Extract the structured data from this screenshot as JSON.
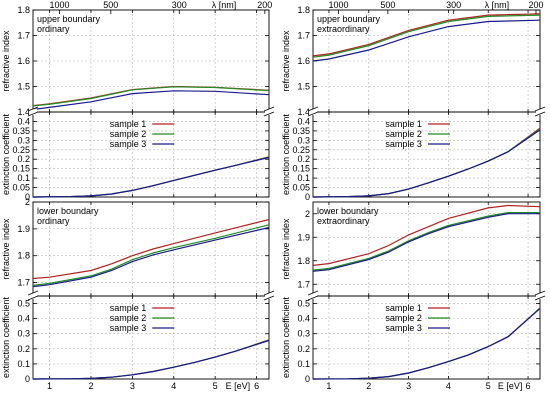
{
  "chart_data": [
    {
      "panel": "top-left",
      "type": "line",
      "annotation": [
        "upper boundary",
        "ordinary"
      ],
      "top_axis": {
        "label": "λ [nm]",
        "ticks": [
          {
            "lambda_nm": 1000,
            "label": "1000"
          },
          {
            "lambda_nm": 500,
            "label": "500"
          },
          {
            "lambda_nm": 300,
            "label": "300"
          },
          {
            "lambda_nm": 200,
            "label": "200"
          }
        ]
      },
      "xlim": [
        0.6,
        6.3
      ],
      "upper": {
        "ylabel": "refractive index",
        "ylim": [
          1.4,
          1.8
        ],
        "yticks": [
          1.4,
          1.5,
          1.6,
          1.7,
          1.8
        ],
        "series": [
          {
            "color": "#b22222",
            "x": [
              0.6,
              1,
              2,
              3,
              4,
              5,
              6.3
            ],
            "y": [
              1.425,
              1.432,
              1.455,
              1.488,
              1.5,
              1.497,
              1.485
            ]
          },
          {
            "color": "#228b22",
            "x": [
              0.6,
              1,
              2,
              3,
              4,
              5,
              6.3
            ],
            "y": [
              1.424,
              1.43,
              1.453,
              1.487,
              1.499,
              1.496,
              1.484
            ]
          },
          {
            "color": "#1a1a8c",
            "x": [
              0.6,
              1,
              2,
              3,
              4,
              5,
              6.3
            ],
            "y": [
              1.41,
              1.418,
              1.44,
              1.472,
              1.483,
              1.481,
              1.468
            ]
          }
        ]
      },
      "lower": {
        "ylabel": "extinction coefficient",
        "ylim": [
          0,
          0.45
        ],
        "yticks": [
          0,
          0.05,
          0.1,
          0.15,
          0.2,
          0.25,
          0.3,
          0.35,
          0.4
        ],
        "legend_position": "top-center",
        "series": [
          {
            "name": "sample 1",
            "color": "#b22222",
            "x": [
              0.6,
              1.5,
              2,
              2.5,
              3,
              3.5,
              4,
              4.5,
              5,
              5.5,
              6.3
            ],
            "y": [
              0,
              0.002,
              0.006,
              0.016,
              0.035,
              0.06,
              0.088,
              0.115,
              0.142,
              0.168,
              0.213
            ]
          },
          {
            "name": "sample 2",
            "color": "#228b22",
            "x": [
              0.6,
              1.5,
              2,
              2.5,
              3,
              3.5,
              4,
              4.5,
              5,
              5.5,
              6.3
            ],
            "y": [
              0,
              0.002,
              0.006,
              0.016,
              0.035,
              0.06,
              0.088,
              0.115,
              0.142,
              0.168,
              0.211
            ]
          },
          {
            "name": "sample 3",
            "color": "#1a1a8c",
            "x": [
              0.6,
              1.5,
              2,
              2.5,
              3,
              3.5,
              4,
              4.5,
              5,
              5.5,
              6.3
            ],
            "y": [
              0,
              0.002,
              0.006,
              0.016,
              0.035,
              0.06,
              0.088,
              0.115,
              0.142,
              0.168,
              0.209
            ]
          }
        ]
      }
    },
    {
      "panel": "top-right",
      "type": "line",
      "annotation": [
        "upper boundary",
        "extraordinary"
      ],
      "top_axis": {
        "label": "λ [nm]",
        "ticks": [
          {
            "lambda_nm": 1000,
            "label": "1000"
          },
          {
            "lambda_nm": 500,
            "label": "500"
          },
          {
            "lambda_nm": 300,
            "label": "300"
          },
          {
            "lambda_nm": 200,
            "label": "200"
          }
        ]
      },
      "xlim": [
        0.6,
        6.3
      ],
      "upper": {
        "ylabel": "refractive index",
        "ylim": [
          1.4,
          1.8
        ],
        "yticks": [
          1.4,
          1.5,
          1.6,
          1.7,
          1.8
        ],
        "series": [
          {
            "color": "#b22222",
            "x": [
              0.6,
              1,
              2,
              3,
              4,
              5,
              6.3
            ],
            "y": [
              1.62,
              1.628,
              1.665,
              1.72,
              1.76,
              1.78,
              1.785
            ]
          },
          {
            "color": "#228b22",
            "x": [
              0.6,
              1,
              2,
              3,
              4,
              5,
              6.3
            ],
            "y": [
              1.615,
              1.623,
              1.66,
              1.715,
              1.755,
              1.775,
              1.78
            ]
          },
          {
            "color": "#1a1a8c",
            "x": [
              0.6,
              1,
              2,
              3,
              4,
              5,
              6.3
            ],
            "y": [
              1.6,
              1.608,
              1.643,
              1.695,
              1.735,
              1.755,
              1.76
            ]
          }
        ]
      },
      "lower": {
        "ylabel": "extinction coefficient",
        "ylim": [
          0,
          0.45
        ],
        "yticks": [
          0,
          0.05,
          0.1,
          0.15,
          0.2,
          0.25,
          0.3,
          0.35,
          0.4
        ],
        "legend_position": "top-center",
        "series": [
          {
            "name": "sample 1",
            "color": "#b22222",
            "x": [
              0.6,
              1.5,
              2,
              2.5,
              3,
              3.5,
              4,
              4.5,
              5,
              5.5,
              6.3
            ],
            "y": [
              0,
              0.002,
              0.006,
              0.018,
              0.042,
              0.075,
              0.11,
              0.148,
              0.19,
              0.24,
              0.365
            ]
          },
          {
            "name": "sample 2",
            "color": "#228b22",
            "x": [
              0.6,
              1.5,
              2,
              2.5,
              3,
              3.5,
              4,
              4.5,
              5,
              5.5,
              6.3
            ],
            "y": [
              0,
              0.002,
              0.006,
              0.018,
              0.042,
              0.075,
              0.11,
              0.148,
              0.19,
              0.24,
              0.36
            ]
          },
          {
            "name": "sample 3",
            "color": "#1a1a8c",
            "x": [
              0.6,
              1.5,
              2,
              2.5,
              3,
              3.5,
              4,
              4.5,
              5,
              5.5,
              6.3
            ],
            "y": [
              0,
              0.002,
              0.006,
              0.018,
              0.042,
              0.075,
              0.11,
              0.148,
              0.19,
              0.24,
              0.355
            ]
          }
        ]
      }
    },
    {
      "panel": "bottom-left",
      "type": "line",
      "annotation": [
        "lower boundary",
        "ordinary"
      ],
      "bottom_axis": {
        "label": "E [eV]",
        "ticks": [
          1,
          2,
          3,
          4,
          5,
          6
        ]
      },
      "xlim": [
        0.6,
        6.3
      ],
      "upper": {
        "ylabel": "refractive index",
        "ylim": [
          1.65,
          2.0
        ],
        "yticks": [
          1.7,
          1.8,
          1.9,
          2.0
        ],
        "series": [
          {
            "color": "#b22222",
            "x": [
              0.6,
              1,
              2,
              2.5,
              3,
              3.5,
              4,
              5,
              6.3
            ],
            "y": [
              1.715,
              1.72,
              1.745,
              1.77,
              1.8,
              1.825,
              1.845,
              1.885,
              1.935
            ]
          },
          {
            "color": "#228b22",
            "x": [
              0.6,
              1,
              2,
              2.5,
              3,
              3.5,
              4,
              5,
              6.3
            ],
            "y": [
              1.69,
              1.697,
              1.725,
              1.75,
              1.785,
              1.81,
              1.83,
              1.865,
              1.915
            ]
          },
          {
            "color": "#1a1a8c",
            "x": [
              0.6,
              1,
              2,
              2.5,
              3,
              3.5,
              4,
              5,
              6.3
            ],
            "y": [
              1.685,
              1.692,
              1.72,
              1.745,
              1.778,
              1.803,
              1.822,
              1.858,
              1.905
            ]
          }
        ]
      },
      "lower": {
        "ylabel": "extinction coefficient",
        "ylim": [
          0,
          0.55
        ],
        "yticks": [
          0,
          0.1,
          0.2,
          0.3,
          0.4,
          0.5
        ],
        "legend_position": "top-center",
        "series": [
          {
            "name": "sample 1",
            "color": "#b22222",
            "x": [
              0.6,
              1.5,
              2,
              2.5,
              3,
              3.5,
              4,
              4.5,
              5,
              5.5,
              6.3
            ],
            "y": [
              0,
              0.001,
              0.004,
              0.012,
              0.028,
              0.05,
              0.078,
              0.11,
              0.145,
              0.185,
              0.26
            ]
          },
          {
            "name": "sample 2",
            "color": "#228b22",
            "x": [
              0.6,
              1.5,
              2,
              2.5,
              3,
              3.5,
              4,
              4.5,
              5,
              5.5,
              6.3
            ],
            "y": [
              0,
              0.001,
              0.004,
              0.012,
              0.028,
              0.05,
              0.078,
              0.11,
              0.145,
              0.185,
              0.258
            ]
          },
          {
            "name": "sample 3",
            "color": "#1a1a8c",
            "x": [
              0.6,
              1.5,
              2,
              2.5,
              3,
              3.5,
              4,
              4.5,
              5,
              5.5,
              6.3
            ],
            "y": [
              0,
              0.001,
              0.004,
              0.012,
              0.028,
              0.05,
              0.078,
              0.11,
              0.145,
              0.185,
              0.255
            ]
          }
        ]
      }
    },
    {
      "panel": "bottom-right",
      "type": "line",
      "annotation": [
        "lower boundary",
        "extraordinary"
      ],
      "bottom_axis": {
        "label": "E [eV]",
        "ticks": [
          1,
          2,
          3,
          4,
          5,
          6
        ]
      },
      "xlim": [
        0.6,
        6.3
      ],
      "upper": {
        "ylabel": "refractive index",
        "ylim": [
          1.65,
          2.05
        ],
        "yticks": [
          1.7,
          1.8,
          1.9,
          2.0
        ],
        "series": [
          {
            "color": "#b22222",
            "x": [
              0.6,
              1,
              2,
              2.5,
              3,
              3.5,
              4,
              5,
              5.5,
              6.3
            ],
            "y": [
              1.78,
              1.788,
              1.83,
              1.865,
              1.91,
              1.945,
              1.98,
              2.025,
              2.035,
              2.03
            ]
          },
          {
            "color": "#228b22",
            "x": [
              0.6,
              1,
              2,
              2.5,
              3,
              3.5,
              4,
              5,
              5.5,
              6.3
            ],
            "y": [
              1.76,
              1.767,
              1.81,
              1.842,
              1.885,
              1.92,
              1.95,
              1.99,
              2.005,
              2.005
            ]
          },
          {
            "color": "#1a1a8c",
            "x": [
              0.6,
              1,
              2,
              2.5,
              3,
              3.5,
              4,
              5,
              5.5,
              6.3
            ],
            "y": [
              1.755,
              1.762,
              1.805,
              1.837,
              1.88,
              1.915,
              1.945,
              1.985,
              2.0,
              2.0
            ]
          }
        ]
      },
      "lower": {
        "ylabel": "extinction coefficient",
        "ylim": [
          0,
          0.55
        ],
        "yticks": [
          0,
          0.1,
          0.2,
          0.3,
          0.4,
          0.5
        ],
        "legend_position": "top-center",
        "series": [
          {
            "name": "sample 1",
            "color": "#b22222",
            "x": [
              0.6,
              1.5,
              2,
              2.5,
              3,
              3.5,
              4,
              4.5,
              5,
              5.5,
              6.3
            ],
            "y": [
              0,
              0.001,
              0.005,
              0.016,
              0.04,
              0.075,
              0.115,
              0.16,
              0.215,
              0.28,
              0.47
            ]
          },
          {
            "name": "sample 2",
            "color": "#228b22",
            "x": [
              0.6,
              1.5,
              2,
              2.5,
              3,
              3.5,
              4,
              4.5,
              5,
              5.5,
              6.3
            ],
            "y": [
              0,
              0.001,
              0.005,
              0.016,
              0.04,
              0.075,
              0.115,
              0.16,
              0.215,
              0.28,
              0.47
            ]
          },
          {
            "name": "sample 3",
            "color": "#1a1a8c",
            "x": [
              0.6,
              1.5,
              2,
              2.5,
              3,
              3.5,
              4,
              4.5,
              5,
              5.5,
              6.3
            ],
            "y": [
              0,
              0.001,
              0.005,
              0.016,
              0.04,
              0.075,
              0.115,
              0.16,
              0.215,
              0.28,
              0.468
            ]
          }
        ]
      }
    }
  ]
}
